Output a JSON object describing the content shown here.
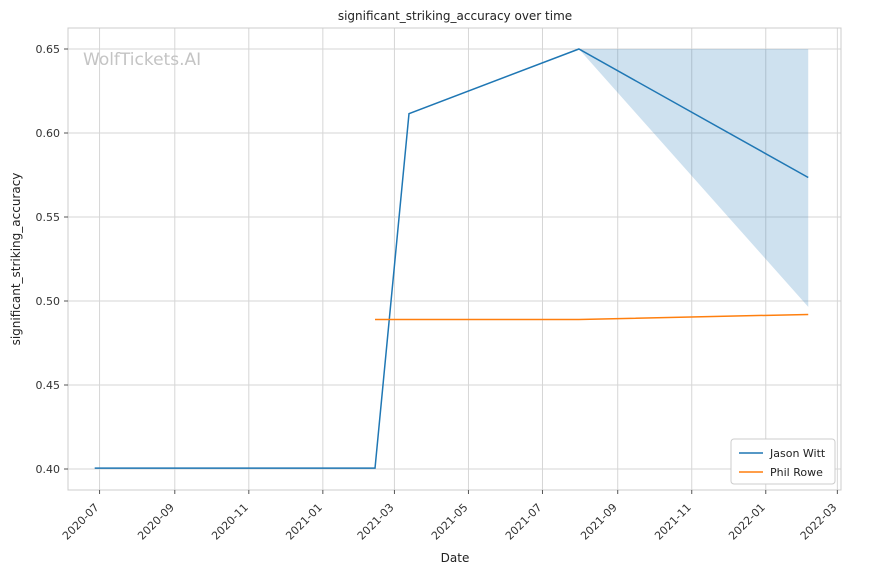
{
  "chart_data": {
    "type": "line",
    "title": "significant_striking_accuracy over time",
    "xlabel": "Date",
    "ylabel": "significant_striking_accuracy",
    "watermark": "WolfTickets.AI",
    "xlim": [
      "2020-06-05",
      "2022-03-04"
    ],
    "ylim": [
      0.3875,
      0.6625
    ],
    "x_ticks": [
      "2020-07",
      "2020-09",
      "2020-11",
      "2021-01",
      "2021-03",
      "2021-05",
      "2021-07",
      "2021-09",
      "2021-11",
      "2022-01",
      "2022-03"
    ],
    "y_ticks": [
      "0.40",
      "0.45",
      "0.50",
      "0.55",
      "0.60",
      "0.65"
    ],
    "grid": true,
    "legend_position": "bottom-right",
    "colors": {
      "Jason Witt": "#1f77b4",
      "Phil Rowe": "#ff7f0e"
    },
    "series": [
      {
        "name": "Jason Witt",
        "points": [
          {
            "x": "2020-06-27",
            "y": 0.4005
          },
          {
            "x": "2021-02-13",
            "y": 0.4005
          },
          {
            "x": "2021-03-13",
            "y": 0.6115
          },
          {
            "x": "2021-07-31",
            "y": 0.65
          },
          {
            "x": "2022-02-05",
            "y": 0.5735
          }
        ],
        "band": [
          {
            "x": "2021-07-31",
            "low": 0.65,
            "high": 0.65
          },
          {
            "x": "2022-02-05",
            "low": 0.4965,
            "high": 0.65
          }
        ]
      },
      {
        "name": "Phil Rowe",
        "points": [
          {
            "x": "2021-02-13",
            "y": 0.489
          },
          {
            "x": "2021-07-31",
            "y": 0.489
          },
          {
            "x": "2022-02-05",
            "y": 0.492
          }
        ]
      }
    ]
  }
}
